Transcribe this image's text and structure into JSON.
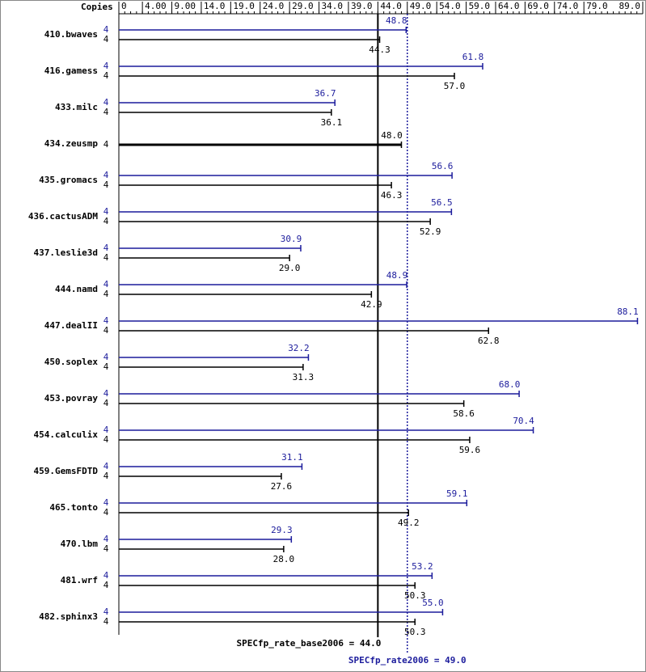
{
  "chart_data": {
    "type": "bar",
    "orientation": "horizontal",
    "copies_label": "Copies",
    "categories": [
      "410.bwaves",
      "416.gamess",
      "433.milc",
      "434.zeusmp",
      "435.gromacs",
      "436.cactusADM",
      "437.leslie3d",
      "444.namd",
      "447.dealII",
      "450.soplex",
      "453.povray",
      "454.calculix",
      "459.GemsFDTD",
      "465.tonto",
      "470.lbm",
      "481.wrf",
      "482.sphinx3"
    ],
    "series": [
      {
        "color": "#1c1c9c",
        "label_position": "above",
        "copies": [
          4,
          4,
          4,
          null,
          4,
          4,
          4,
          4,
          4,
          4,
          4,
          4,
          4,
          4,
          4,
          4,
          4
        ],
        "values": [
          48.8,
          61.8,
          36.7,
          null,
          56.6,
          56.5,
          30.9,
          48.9,
          88.1,
          32.2,
          68.0,
          70.4,
          31.1,
          59.1,
          29.3,
          53.2,
          55.0
        ],
        "value_labels": [
          "48.8",
          "61.8",
          "36.7",
          null,
          "56.6",
          "56.5",
          "30.9",
          "48.9",
          "88.1",
          "32.2",
          "68.0",
          "70.4",
          "31.1",
          "59.1",
          "29.3",
          "53.2",
          "55.0"
        ]
      },
      {
        "color": "#000000",
        "label_position": "below",
        "copies": [
          4,
          4,
          4,
          4,
          4,
          4,
          4,
          4,
          4,
          4,
          4,
          4,
          4,
          4,
          4,
          4,
          4
        ],
        "values": [
          44.3,
          57.0,
          36.1,
          48.0,
          46.3,
          52.9,
          29.0,
          42.9,
          62.8,
          31.3,
          58.6,
          59.6,
          27.6,
          49.2,
          28.0,
          50.3,
          50.3
        ],
        "value_labels": [
          "44.3",
          "57.0",
          "36.1",
          "48.0",
          "46.3",
          "52.9",
          "29.0",
          "42.9",
          "62.8",
          "31.3",
          "58.6",
          "59.6",
          "27.6",
          "49.2",
          "28.0",
          "50.3",
          "50.3"
        ]
      }
    ],
    "xlim": [
      0,
      89
    ],
    "xticks": [
      0,
      {
        "value": 4,
        "label": "4.00"
      },
      {
        "value": 9,
        "label": "9.00"
      },
      {
        "value": 14,
        "label": "14.0"
      },
      {
        "value": 19,
        "label": "19.0"
      },
      {
        "value": 24,
        "label": "24.0"
      },
      {
        "value": 29,
        "label": "29.0"
      },
      {
        "value": 34,
        "label": "34.0"
      },
      {
        "value": 39,
        "label": "39.0"
      },
      {
        "value": 44,
        "label": "44.0"
      },
      {
        "value": 49,
        "label": "49.0"
      },
      {
        "value": 54,
        "label": "54.0"
      },
      {
        "value": 59,
        "label": "59.0"
      },
      {
        "value": 64,
        "label": "64.0"
      },
      {
        "value": 69,
        "label": "69.0"
      },
      {
        "value": 74,
        "label": "74.0"
      },
      {
        "value": 79,
        "label": "79.0"
      },
      {
        "value": 89,
        "label": "89.0"
      }
    ],
    "reference_lines": [
      {
        "label": "SPECfp_rate_base2006 = 44.0",
        "value": 44.0,
        "color": "#000000",
        "style": "solid"
      },
      {
        "label": "SPECfp_rate2006 = 49.0",
        "value": 49.0,
        "color": "#1c1c9c",
        "style": "dotted"
      }
    ]
  }
}
